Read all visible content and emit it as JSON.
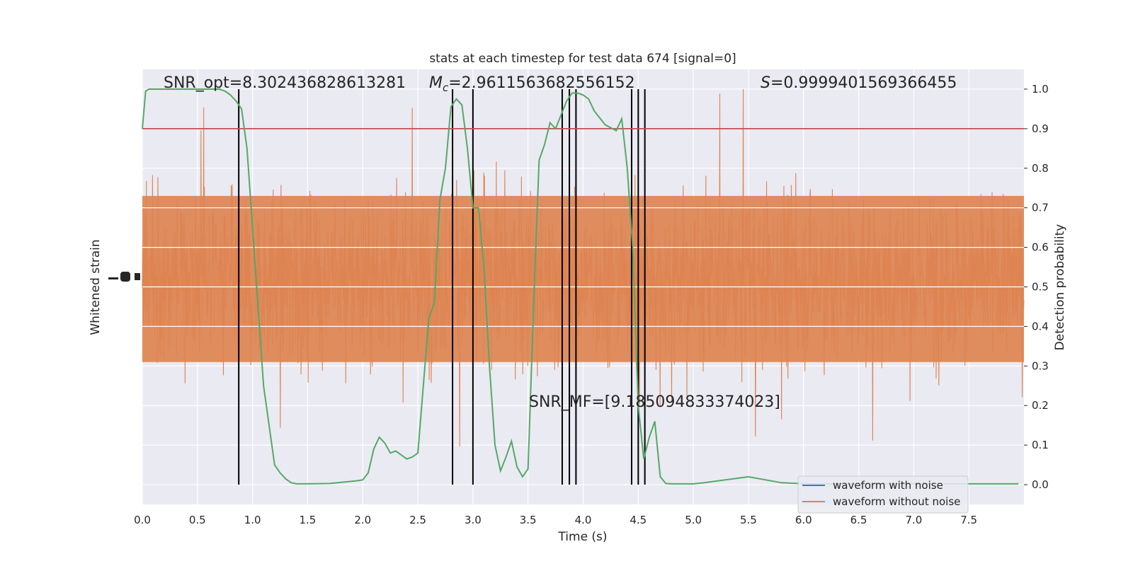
{
  "chart_data": {
    "type": "line",
    "title": "stats at each timestep for test data 674 [signal=0]",
    "xlabel": "Time (s)",
    "ylabel_left": "Whitened strain",
    "ylabel_right": "Detection probability",
    "xlim": [
      0,
      8
    ],
    "ylim_right": [
      -0.05,
      1.05
    ],
    "x_ticks": [
      "0.0",
      "0.5",
      "1.0",
      "1.5",
      "2.0",
      "2.5",
      "3.0",
      "3.5",
      "4.0",
      "4.5",
      "5.0",
      "5.5",
      "6.0",
      "6.5",
      "7.0",
      "7.5"
    ],
    "y_ticks_right": [
      "0.0",
      "0.1",
      "0.2",
      "0.3",
      "0.4",
      "0.5",
      "0.6",
      "0.7",
      "0.8",
      "0.9",
      "1.0"
    ],
    "grid": true,
    "threshold": 0.9,
    "vertical_lines": [
      0.875,
      2.815,
      3.0,
      3.81,
      3.875,
      3.935,
      4.44,
      4.5,
      4.56
    ],
    "annotations": {
      "snr_opt": "SNR_opt=8.302436828613281",
      "mc_symbol": "M",
      "mc_sub": "c",
      "mc_value": "=2.9611563682556152",
      "s_symbol": "S",
      "s_value": "=0.9999401569366455",
      "snr_mf": "SNR_MF=[9.185094833374023]"
    },
    "legend": {
      "placement": "lower-right",
      "entries": [
        "waveform with noise",
        "waveform without noise"
      ]
    },
    "series": [
      {
        "name": "waveform with noise",
        "color": "#4c72b0"
      },
      {
        "name": "waveform without noise",
        "color": "#dd8452"
      },
      {
        "color": "#55a868",
        "x": [
          0.0,
          0.03,
          0.06,
          0.1,
          0.3,
          0.5,
          0.6,
          0.7,
          0.75,
          0.8,
          0.85,
          0.9,
          0.95,
          1.0,
          1.1,
          1.2,
          1.25,
          1.3,
          1.35,
          1.4,
          1.5,
          1.7,
          1.95,
          2.0,
          2.05,
          2.1,
          2.15,
          2.2,
          2.25,
          2.3,
          2.35,
          2.4,
          2.45,
          2.5,
          2.55,
          2.6,
          2.65,
          2.7,
          2.75,
          2.8,
          2.85,
          2.9,
          2.95,
          3.0,
          3.05,
          3.1,
          3.15,
          3.2,
          3.25,
          3.3,
          3.35,
          3.4,
          3.45,
          3.5,
          3.55,
          3.6,
          3.65,
          3.7,
          3.75,
          3.8,
          3.85,
          3.9,
          3.95,
          4.0,
          4.05,
          4.1,
          4.2,
          4.3,
          4.35,
          4.4,
          4.45,
          4.5,
          4.55,
          4.6,
          4.65,
          4.7,
          4.75,
          4.8,
          4.85,
          4.9,
          4.95,
          5.0,
          5.1,
          5.5,
          5.8,
          5.95,
          6.05,
          6.2,
          6.5,
          7.0,
          7.5,
          7.95
        ],
        "y": [
          0.9,
          0.995,
          1.0,
          1.0,
          1.0,
          1.0,
          1.0,
          1.0,
          0.995,
          0.985,
          0.97,
          0.95,
          0.85,
          0.65,
          0.25,
          0.05,
          0.03,
          0.015,
          0.005,
          0.002,
          0.002,
          0.003,
          0.01,
          0.012,
          0.03,
          0.09,
          0.12,
          0.105,
          0.08,
          0.085,
          0.075,
          0.065,
          0.07,
          0.08,
          0.25,
          0.42,
          0.46,
          0.72,
          0.8,
          0.955,
          0.975,
          0.96,
          0.85,
          0.7,
          0.7,
          0.55,
          0.3,
          0.1,
          0.035,
          0.07,
          0.11,
          0.045,
          0.02,
          0.04,
          0.45,
          0.82,
          0.86,
          0.915,
          0.9,
          0.935,
          0.97,
          0.99,
          0.99,
          0.985,
          0.975,
          0.945,
          0.91,
          0.895,
          0.925,
          0.8,
          0.6,
          0.2,
          0.065,
          0.12,
          0.16,
          0.02,
          0.003,
          0.002,
          0.002,
          0.002,
          0.002,
          0.002,
          0.005,
          0.02,
          0.005,
          0.003,
          0.002,
          0.002,
          0.002,
          0.002,
          0.002,
          0.002
        ]
      }
    ]
  }
}
